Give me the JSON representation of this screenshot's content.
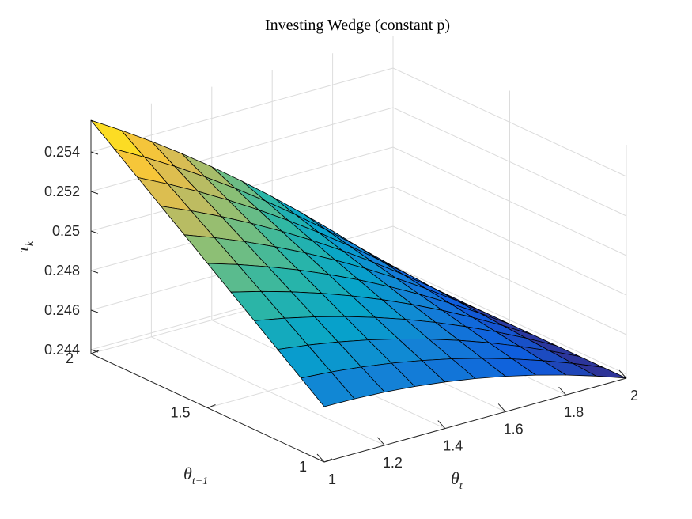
{
  "chart_data": {
    "type": "surface",
    "title": "Investing Wedge (constant p̄)",
    "xlabel": "θ",
    "xlabel_sub": "t",
    "ylabel": "θ",
    "ylabel_sub": "t+1",
    "zlabel": "τ",
    "zlabel_sub": "k",
    "xlim": [
      1,
      2
    ],
    "ylim": [
      1,
      2
    ],
    "zlim": [
      0.2438,
      0.2556
    ],
    "xticks": [
      "1",
      "1.2",
      "1.4",
      "1.6",
      "1.8",
      "2"
    ],
    "yticks": [
      "1",
      "1.5",
      "2"
    ],
    "zticks": [
      "0.244",
      "0.246",
      "0.248",
      "0.25",
      "0.252",
      "0.254"
    ],
    "grid": true,
    "colormap": "parula",
    "x": [
      1.0,
      1.1,
      1.2,
      1.3,
      1.4,
      1.5,
      1.6,
      1.7,
      1.8,
      1.9,
      2.0
    ],
    "y": [
      1.0,
      1.1,
      1.2,
      1.3,
      1.4,
      1.5,
      1.6,
      1.7,
      1.8,
      1.9,
      2.0
    ],
    "corner_values": {
      "x1_y1": 0.2466,
      "x2_y1": 0.2438,
      "x1_y2": 0.2556,
      "x2_y2": 0.2438
    },
    "mid_curvature": 0.0007,
    "colors": [
      "#352a87",
      "#0f5cdd",
      "#1481d6",
      "#06a4ca",
      "#2eb7a4",
      "#87bf77",
      "#d1bb59",
      "#fec832",
      "#f9fb0e"
    ],
    "grid_color": "#dcdcdc",
    "axis_color": "#262626",
    "edge_color": "#000000"
  }
}
